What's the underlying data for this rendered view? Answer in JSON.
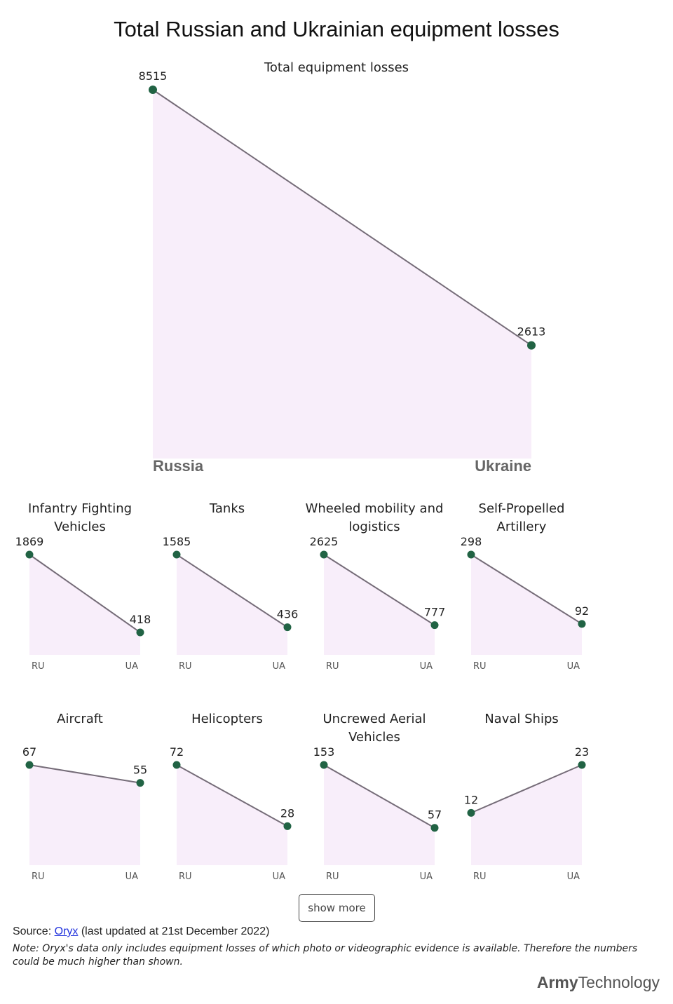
{
  "page": {
    "title": "Total Russian and Ukrainian equipment losses",
    "show_more_label": "show more",
    "source_prefix": "Source: ",
    "source_link": "Oryx",
    "source_suffix": " (last updated at 21st December 2022)",
    "note": "Note: Oryx's data only includes equipment losses of which photo or videographic evidence is available. Therefore the numbers could be much higher than shown.",
    "brand_part1": "Army",
    "brand_part2": "Technology"
  },
  "colors": {
    "line": "#756c78",
    "point": "#216344",
    "area": "#f8eefa"
  },
  "chart_data": [
    {
      "type": "line",
      "title": "Total equipment losses",
      "categories": [
        "Russia",
        "Ukraine"
      ],
      "values": [
        8515,
        2613
      ]
    },
    {
      "type": "line",
      "title": "Infantry Fighting Vehicles",
      "categories": [
        "RU",
        "UA"
      ],
      "values": [
        1869,
        418
      ]
    },
    {
      "type": "line",
      "title": "Tanks",
      "categories": [
        "RU",
        "UA"
      ],
      "values": [
        1585,
        436
      ]
    },
    {
      "type": "line",
      "title": "Wheeled mobility and logistics",
      "categories": [
        "RU",
        "UA"
      ],
      "values": [
        2625,
        777
      ]
    },
    {
      "type": "line",
      "title": "Self-Propelled Artillery",
      "categories": [
        "RU",
        "UA"
      ],
      "values": [
        298,
        92
      ]
    },
    {
      "type": "line",
      "title": "Aircraft",
      "categories": [
        "RU",
        "UA"
      ],
      "values": [
        67,
        55
      ]
    },
    {
      "type": "line",
      "title": "Helicopters",
      "categories": [
        "RU",
        "UA"
      ],
      "values": [
        72,
        28
      ]
    },
    {
      "type": "line",
      "title": "Uncrewed Aerial Vehicles",
      "categories": [
        "RU",
        "UA"
      ],
      "values": [
        153,
        57
      ]
    },
    {
      "type": "line",
      "title": "Naval Ships",
      "categories": [
        "RU",
        "UA"
      ],
      "values": [
        12,
        23
      ]
    }
  ]
}
